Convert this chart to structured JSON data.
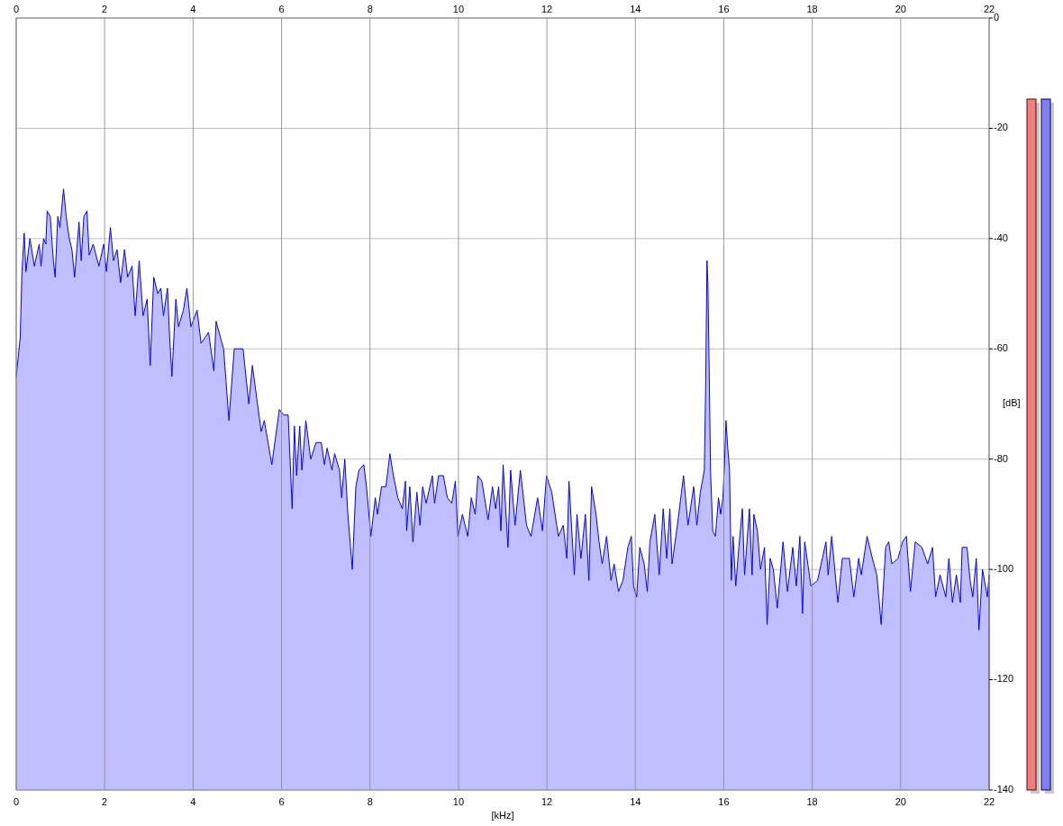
{
  "chart_data": {
    "type": "area",
    "xlabel": "[kHz]",
    "ylabel": "[dB]",
    "x": [
      0,
      0.09,
      0.13,
      0.18,
      0.22,
      0.31,
      0.41,
      0.52,
      0.56,
      0.62,
      0.67,
      0.7,
      0.77,
      0.84,
      0.88,
      0.94,
      0.99,
      1.07,
      1.13,
      1.2,
      1.26,
      1.32,
      1.42,
      1.47,
      1.53,
      1.6,
      1.65,
      1.74,
      1.87,
      1.98,
      2.04,
      2.13,
      2.2,
      2.28,
      2.36,
      2.45,
      2.52,
      2.62,
      2.69,
      2.78,
      2.87,
      2.96,
      3.03,
      3.11,
      3.2,
      3.27,
      3.33,
      3.42,
      3.47,
      3.52,
      3.61,
      3.67,
      3.78,
      3.86,
      3.95,
      4.09,
      4.18,
      4.35,
      4.47,
      4.52,
      4.62,
      4.69,
      4.81,
      4.93,
      5.13,
      5.26,
      5.34,
      5.44,
      5.54,
      5.61,
      5.78,
      5.95,
      6.05,
      6.15,
      6.24,
      6.29,
      6.34,
      6.41,
      6.46,
      6.55,
      6.66,
      6.78,
      6.9,
      6.97,
      7.03,
      7.14,
      7.2,
      7.31,
      7.36,
      7.43,
      7.5,
      7.6,
      7.68,
      7.75,
      7.86,
      7.92,
      8.02,
      8.12,
      8.17,
      8.26,
      8.36,
      8.45,
      8.53,
      8.63,
      8.73,
      8.8,
      8.83,
      8.9,
      8.97,
      9.06,
      9.13,
      9.19,
      9.27,
      9.41,
      9.46,
      9.55,
      9.66,
      9.75,
      9.85,
      9.93,
      9.99,
      10.09,
      10.21,
      10.29,
      10.38,
      10.44,
      10.53,
      10.67,
      10.77,
      10.84,
      10.91,
      10.96,
      11.01,
      11.12,
      11.18,
      11.28,
      11.4,
      11.54,
      11.64,
      11.79,
      11.9,
      11.99,
      12.11,
      12.26,
      12.37,
      12.45,
      12.5,
      12.62,
      12.68,
      12.77,
      12.87,
      12.95,
      13.01,
      13.11,
      13.18,
      13.25,
      13.35,
      13.45,
      13.52,
      13.62,
      13.72,
      13.83,
      13.91,
      13.96,
      14.03,
      14.1,
      14.2,
      14.27,
      14.33,
      14.44,
      14.54,
      14.63,
      14.71,
      14.78,
      14.83,
      14.95,
      15.09,
      15.19,
      15.32,
      15.39,
      15.47,
      15.56,
      15.59,
      15.62,
      15.64,
      15.67,
      15.7,
      15.75,
      15.81,
      15.88,
      15.93,
      15.98,
      16.02,
      16.05,
      16.09,
      16.13,
      16.17,
      16.21,
      16.27,
      16.34,
      16.42,
      16.47,
      16.58,
      16.64,
      16.68,
      16.76,
      16.83,
      16.92,
      16.98,
      17.05,
      17.12,
      17.21,
      17.34,
      17.44,
      17.56,
      17.64,
      17.72,
      17.78,
      17.83,
      17.97,
      18.12,
      18.31,
      18.36,
      18.44,
      18.58,
      18.68,
      18.84,
      18.94,
      19.05,
      19.11,
      19.24,
      19.36,
      19.46,
      19.56,
      19.66,
      19.73,
      19.8,
      19.94,
      20.04,
      20.13,
      20.22,
      20.33,
      20.48,
      20.61,
      20.72,
      20.79,
      20.89,
      21.02,
      21.09,
      21.17,
      21.26,
      21.35,
      21.39,
      21.5,
      21.57,
      21.63,
      21.71,
      21.77,
      21.85,
      21.96,
      22
    ],
    "series": [
      {
        "color": "#0000ff",
        "values": [
          -65,
          -58,
          -46,
          -39,
          -46,
          -40,
          -45,
          -41,
          -45,
          -40,
          -41,
          -35,
          -36,
          -44,
          -47,
          -36,
          -38,
          -31,
          -36,
          -40,
          -42,
          -47,
          -37,
          -44,
          -36,
          -35,
          -43,
          -41,
          -45,
          -41,
          -46,
          -38,
          -44,
          -42,
          -48,
          -42,
          -47,
          -45,
          -54,
          -44,
          -54,
          -51,
          -63,
          -47,
          -50,
          -49,
          -54,
          -49,
          -58,
          -65,
          -51,
          -56,
          -53,
          -49,
          -56,
          -53,
          -59,
          -57,
          -64,
          -55,
          -58,
          -60,
          -73,
          -60,
          -60,
          -70,
          -63,
          -69,
          -75,
          -73,
          -81,
          -71,
          -72,
          -72,
          -89,
          -74,
          -83,
          -74,
          -82,
          -73,
          -80,
          -77,
          -77,
          -81,
          -78,
          -82,
          -79,
          -82,
          -87,
          -80,
          -90,
          -100,
          -85,
          -82,
          -81,
          -85,
          -94,
          -87,
          -90,
          -85,
          -85,
          -79,
          -83,
          -87,
          -89,
          -84,
          -93,
          -85,
          -95,
          -86,
          -92,
          -85,
          -88,
          -83,
          -88,
          -83,
          -83,
          -87,
          -88,
          -84,
          -94,
          -90,
          -94,
          -87,
          -90,
          -83,
          -84,
          -91,
          -85,
          -89,
          -85,
          -93,
          -81,
          -96,
          -82,
          -92,
          -82,
          -92,
          -94,
          -87,
          -93,
          -83,
          -86,
          -94,
          -92,
          -98,
          -84,
          -101,
          -90,
          -98,
          -90,
          -102,
          -85,
          -90,
          -95,
          -99,
          -94,
          -102,
          -99,
          -104,
          -102,
          -96,
          -94,
          -103,
          -105,
          -96,
          -99,
          -104,
          -95,
          -90,
          -101,
          -89,
          -98,
          -89,
          -99,
          -92,
          -83,
          -92,
          -85,
          -92,
          -86,
          -82,
          -67,
          -44,
          -48,
          -64,
          -82,
          -93,
          -94,
          -87,
          -90,
          -87,
          -80,
          -73,
          -78,
          -82,
          -102,
          -94,
          -103,
          -96,
          -89,
          -101,
          -89,
          -101,
          -90,
          -93,
          -100,
          -96,
          -110,
          -98,
          -100,
          -107,
          -95,
          -104,
          -96,
          -103,
          -94,
          -108,
          -95,
          -103,
          -102,
          -95,
          -101,
          -94,
          -106,
          -98,
          -98,
          -105,
          -98,
          -101,
          -94,
          -98,
          -101,
          -110,
          -96,
          -95,
          -99,
          -98,
          -95,
          -94,
          -104,
          -95,
          -96,
          -99,
          -96,
          -105,
          -101,
          -105,
          -98,
          -106,
          -101,
          -106,
          -96,
          -96,
          -102,
          -105,
          -98,
          -111,
          -100,
          -105,
          -101
        ]
      }
    ],
    "xlim": [
      0,
      22
    ],
    "xticks": [
      0,
      2,
      4,
      6,
      8,
      10,
      12,
      14,
      16,
      18,
      20,
      22
    ],
    "x2lim": [
      0,
      22
    ],
    "x2ticks": [
      0,
      2,
      4,
      6,
      8,
      10,
      12,
      14,
      16,
      18,
      20,
      22
    ],
    "ylim": [
      -140,
      0
    ],
    "yticks": [
      0,
      -20,
      -40,
      -60,
      -80,
      -100,
      -120,
      -140
    ],
    "grid": true
  }
}
